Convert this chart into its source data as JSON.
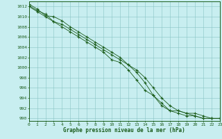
{
  "xlabel": "Graphe pression niveau de la mer (hPa)",
  "background_color": "#c8eef0",
  "grid_color": "#89c4c4",
  "line_color": "#1a5c1a",
  "marker_color": "#1a5c1a",
  "ylim": [
    989.5,
    1013
  ],
  "xlim": [
    0,
    23
  ],
  "yticks": [
    990,
    992,
    994,
    996,
    998,
    1000,
    1002,
    1004,
    1006,
    1008,
    1010,
    1012
  ],
  "xticks": [
    0,
    1,
    2,
    3,
    4,
    5,
    6,
    7,
    8,
    9,
    10,
    11,
    12,
    13,
    14,
    15,
    16,
    17,
    18,
    19,
    20,
    21,
    22,
    23
  ],
  "series": [
    [
      1012.5,
      1011.5,
      1010.2,
      1010.0,
      1009.2,
      1008.0,
      1007.0,
      1006.0,
      1005.0,
      1004.0,
      1003.0,
      1002.0,
      1000.5,
      999.0,
      997.0,
      994.5,
      993.0,
      991.5,
      991.0,
      990.5,
      990.5,
      990.0,
      990.0,
      990.0
    ],
    [
      1012.2,
      1011.2,
      1010.5,
      1009.0,
      1008.0,
      1007.0,
      1006.0,
      1005.0,
      1004.0,
      1003.0,
      1001.5,
      1001.0,
      999.5,
      997.5,
      995.5,
      994.5,
      992.5,
      991.5,
      991.5,
      991.0,
      991.0,
      990.5,
      990.0,
      990.0
    ],
    [
      1012.0,
      1011.0,
      1010.0,
      1009.0,
      1008.5,
      1007.5,
      1006.5,
      1005.5,
      1004.5,
      1003.5,
      1002.5,
      1001.5,
      1000.5,
      999.5,
      998.0,
      996.0,
      994.0,
      992.5,
      991.5,
      991.0,
      990.5,
      990.0,
      990.0,
      990.0
    ]
  ],
  "figsize": [
    3.2,
    2.0
  ],
  "dpi": 100
}
